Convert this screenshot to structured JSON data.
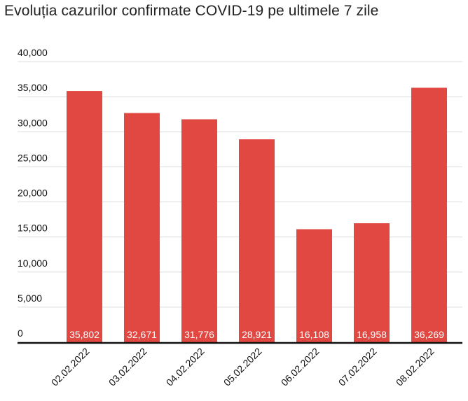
{
  "chart_data": {
    "type": "bar",
    "title": "Evoluția cazurilor confirmate COVID-19 pe ultimele 7 zile",
    "categories": [
      "02.02.2022",
      "03.02.2022",
      "04.02.2022",
      "05.02.2022",
      "06.02.2022",
      "07.02.2022",
      "08.02.2022"
    ],
    "values": [
      35802,
      32671,
      31776,
      28921,
      16108,
      16958,
      36269
    ],
    "data_labels": [
      "35,802",
      "32,671",
      "31,776",
      "28,921",
      "16,108",
      "16,958",
      "36,269"
    ],
    "yticks": [
      "0",
      "5,000",
      "10,000",
      "15,000",
      "20,000",
      "25,000",
      "30,000",
      "35,000",
      "40,000"
    ],
    "ytick_values": [
      0,
      5000,
      10000,
      15000,
      20000,
      25000,
      30000,
      35000,
      40000
    ],
    "ylim": [
      0,
      40000
    ],
    "xlabel": "",
    "ylabel": "",
    "grid": true,
    "legend": "none",
    "bar_color": "#e04841"
  }
}
